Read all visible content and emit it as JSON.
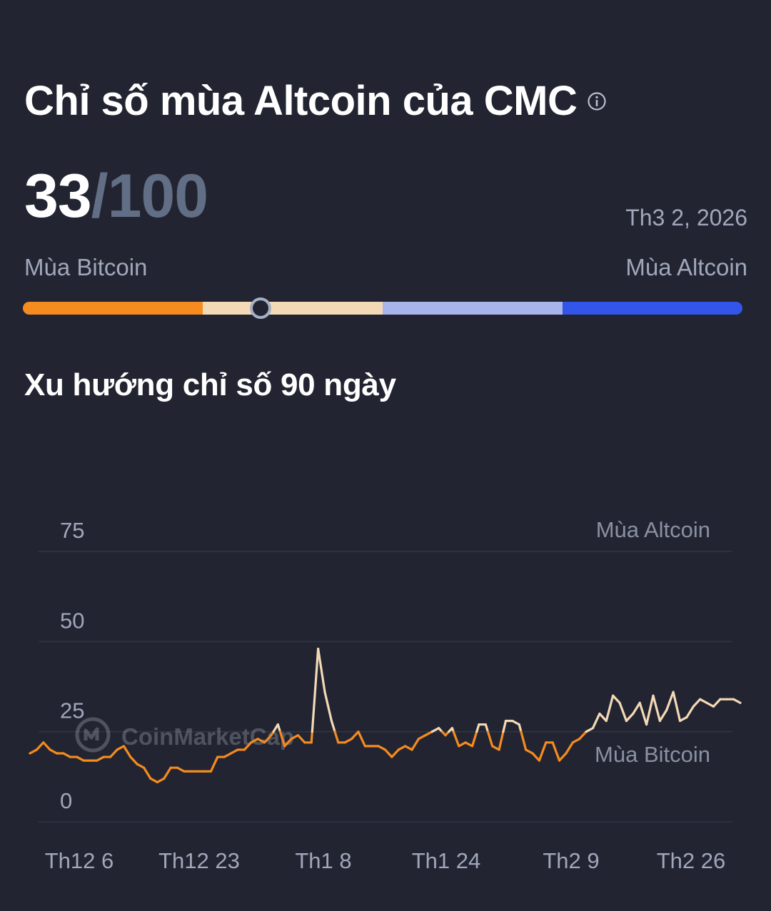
{
  "header": {
    "title": "Chỉ số mùa Altcoin của CMC",
    "info_icon": "info-icon"
  },
  "score": {
    "value": "33",
    "separator": "/",
    "max": "100",
    "date": "Th3 2, 2026"
  },
  "gauge": {
    "left_label": "Mùa Bitcoin",
    "right_label": "Mùa Altcoin",
    "value": 33,
    "segment_colors": [
      "#f68b1f",
      "#f4d9b6",
      "#a7b5eb",
      "#3355ea"
    ]
  },
  "trend": {
    "title": "Xu hướng chỉ số 90 ngày"
  },
  "watermark": "CoinMarketCap",
  "chart_data": {
    "type": "line",
    "title": "Xu hướng chỉ số 90 ngày",
    "xlabel": "",
    "ylabel": "",
    "ylim": [
      0,
      75
    ],
    "yticks": [
      0,
      25,
      50,
      75
    ],
    "xtick_labels": [
      "Th12 6",
      "Th12 23",
      "Th1 8",
      "Th1 24",
      "Th2 9",
      "Th2 26"
    ],
    "zone_labels": {
      "upper": "Mùa Altcoin",
      "lower": "Mùa Bitcoin"
    },
    "threshold": 25,
    "grid": true,
    "colors": {
      "below": "#f68b1f",
      "above": "#f4d9b6",
      "grid": "#323546"
    },
    "series": [
      {
        "values": [
          19,
          20,
          22,
          20,
          19,
          19,
          18,
          18,
          17,
          17,
          17,
          18,
          18,
          20,
          21,
          18,
          16,
          15,
          12,
          11,
          12,
          15,
          15,
          14,
          14,
          14,
          14,
          14,
          18,
          18,
          19,
          20,
          20,
          22,
          23,
          22,
          24,
          27,
          21,
          23,
          24,
          22,
          22,
          48,
          36,
          28,
          22,
          22,
          23,
          25,
          21,
          21,
          21,
          20,
          18,
          20,
          21,
          20,
          23,
          24,
          25,
          26,
          24,
          26,
          21,
          22,
          21,
          27,
          27,
          21,
          20,
          28,
          28,
          27,
          20,
          19,
          17,
          22,
          22,
          17,
          19,
          22,
          23,
          25,
          26,
          30,
          28,
          35,
          33,
          28,
          30,
          33,
          27,
          35,
          28,
          31,
          36,
          28,
          29,
          32,
          34,
          33,
          32,
          34,
          34,
          34,
          33
        ]
      }
    ]
  }
}
